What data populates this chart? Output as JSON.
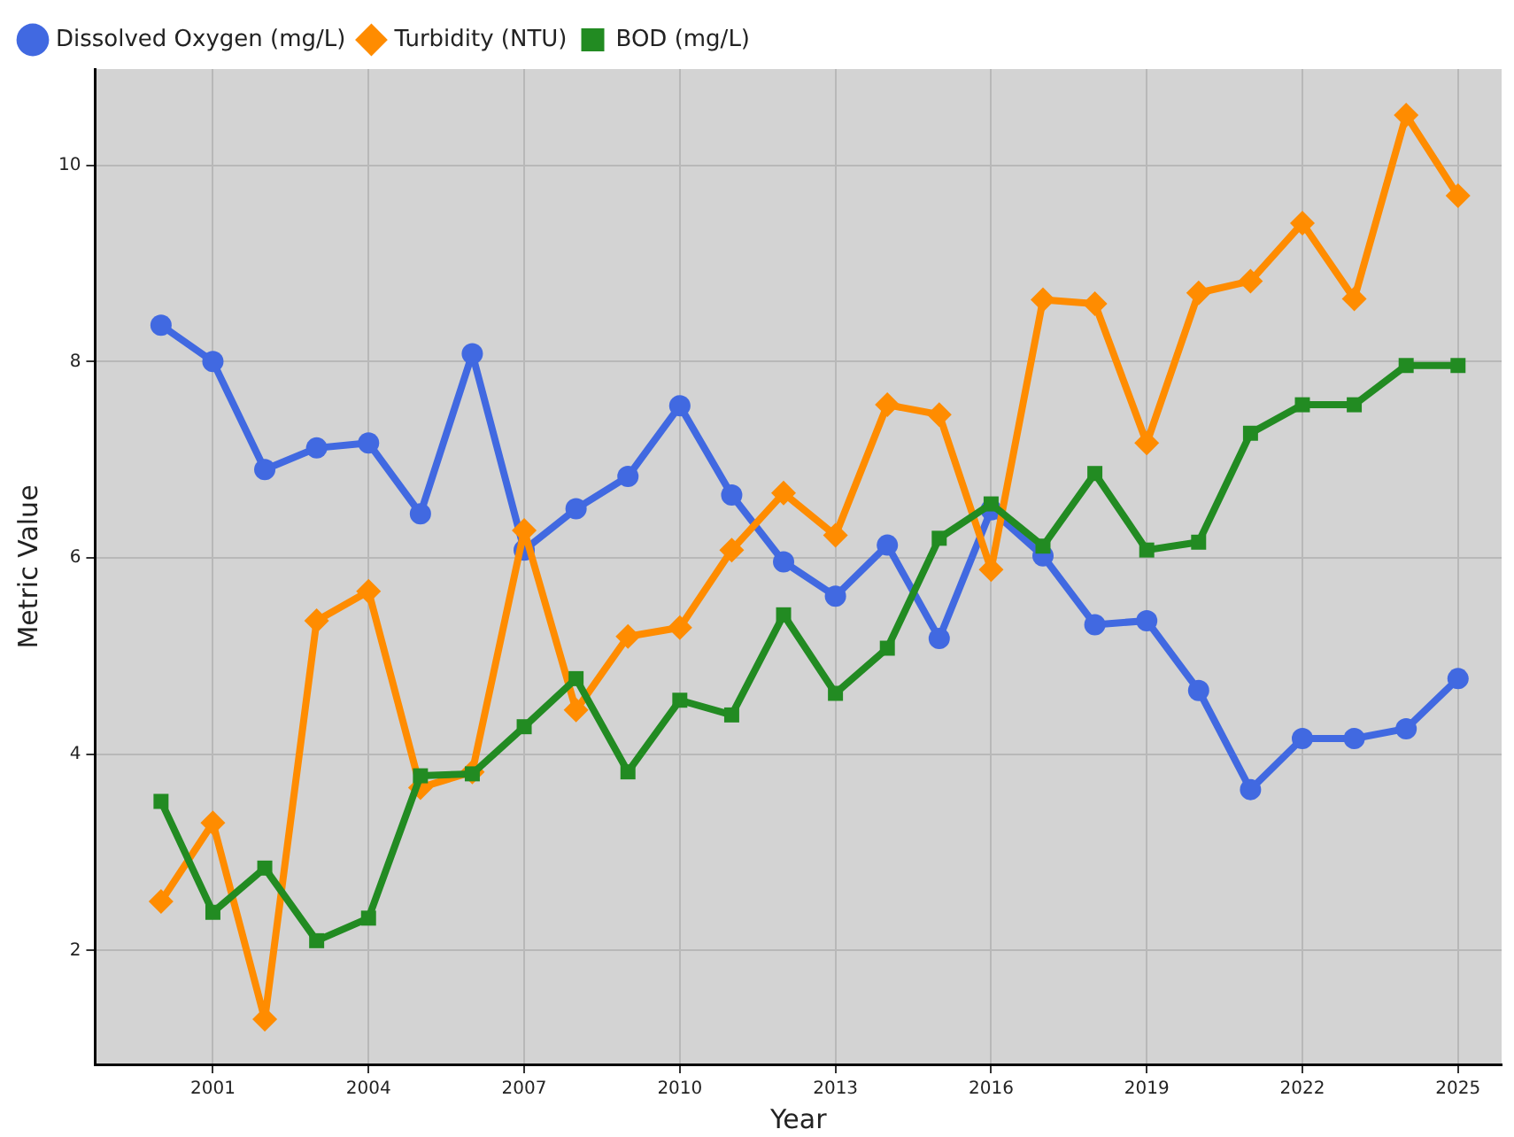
{
  "chart_data": {
    "type": "line",
    "xlabel": "Year",
    "ylabel": "Metric Value",
    "x": [
      2000,
      2001,
      2002,
      2003,
      2004,
      2005,
      2006,
      2007,
      2008,
      2009,
      2010,
      2011,
      2012,
      2013,
      2014,
      2015,
      2016,
      2017,
      2018,
      2019,
      2020,
      2021,
      2022,
      2023,
      2024,
      2025
    ],
    "series": [
      {
        "name": "Dissolved Oxygen (mg/L)",
        "color": "#4169e1",
        "marker": "circle",
        "values": [
          8.37,
          8.0,
          6.9,
          7.12,
          7.17,
          6.45,
          8.08,
          6.08,
          6.5,
          6.83,
          7.55,
          6.64,
          5.96,
          5.61,
          6.13,
          5.18,
          6.49,
          6.02,
          5.32,
          5.36,
          4.65,
          3.64,
          4.16,
          4.16,
          4.26,
          4.77
        ]
      },
      {
        "name": "Turbidity (NTU)",
        "color": "#ff8c00",
        "marker": "diamond",
        "values": [
          2.5,
          3.3,
          1.3,
          5.36,
          5.66,
          3.66,
          3.82,
          6.28,
          4.45,
          5.2,
          5.29,
          6.08,
          6.66,
          6.23,
          7.56,
          7.46,
          5.88,
          8.63,
          8.59,
          7.17,
          8.7,
          8.82,
          9.41,
          8.64,
          10.51,
          9.69
        ]
      },
      {
        "name": "BOD (mg/L)",
        "color": "#228b22",
        "marker": "square",
        "values": [
          3.52,
          2.39,
          2.84,
          2.1,
          2.33,
          3.78,
          3.8,
          4.28,
          4.77,
          3.82,
          4.55,
          4.4,
          5.42,
          4.62,
          5.08,
          6.2,
          6.55,
          6.12,
          6.86,
          6.08,
          6.16,
          7.27,
          7.56,
          7.56,
          7.96,
          7.96
        ]
      }
    ],
    "xlim": [
      1998.73,
      2025.84
    ],
    "xticks": [
      2001,
      2004,
      2007,
      2010,
      2013,
      2016,
      2019,
      2022,
      2025
    ],
    "ylim": [
      0.84,
      10.98
    ],
    "yticks": [
      2,
      4,
      6,
      8,
      10
    ],
    "grid": true,
    "legend": "top left",
    "line_style": "solid"
  }
}
